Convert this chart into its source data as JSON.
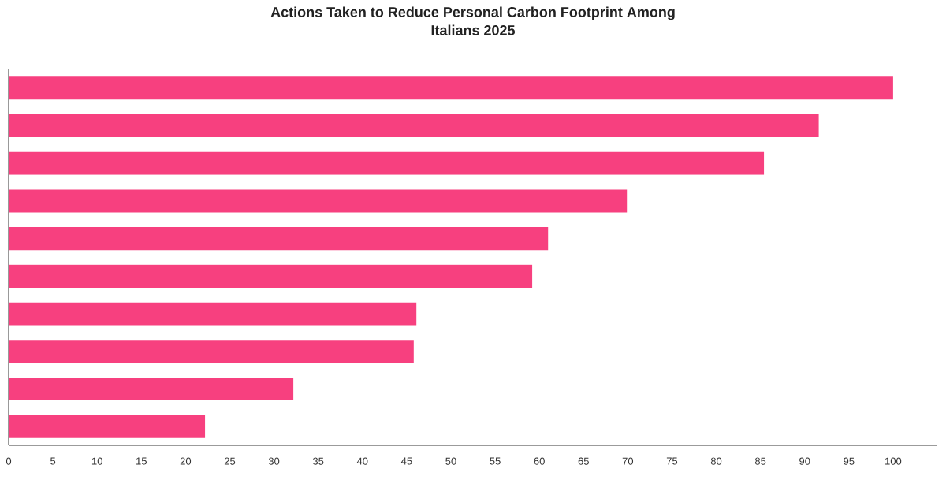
{
  "chart_data": {
    "type": "bar",
    "orientation": "horizontal",
    "title": "Actions Taken to Reduce Personal Carbon Footprint Among Italians 2025",
    "categories": [
      null,
      null,
      null,
      null,
      null,
      null,
      null,
      null,
      null,
      null
    ],
    "values": [
      100,
      91.6,
      85.4,
      69.9,
      61.0,
      59.2,
      46.1,
      45.8,
      32.2,
      22.2
    ],
    "color": "#f7407f",
    "xlim": [
      0,
      105
    ],
    "xticks": [
      0,
      5,
      10,
      15,
      20,
      25,
      30,
      35,
      40,
      45,
      50,
      55,
      60,
      65,
      70,
      75,
      80,
      85,
      90,
      95,
      100
    ],
    "tick_labels": "x"
  }
}
